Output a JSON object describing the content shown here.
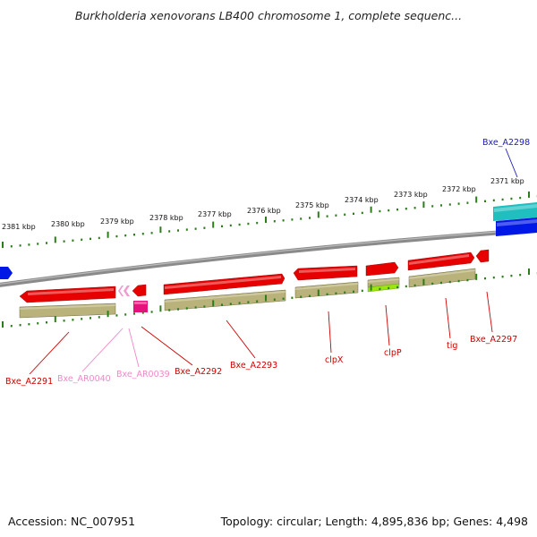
{
  "title": "Burkholderia xenovorans LB400 chromosome 1, complete sequenc...",
  "footer": {
    "accession_label": "Accession:",
    "accession": "NC_007951",
    "topology_label": "Topology:",
    "topology": "circular",
    "length_label": "Length:",
    "length": "4,895,836 bp",
    "genes_label": "Genes:",
    "genes": "4,498"
  },
  "colors": {
    "cds_red": "#e60000",
    "rna_pink": "#f09bd0",
    "feature_magenta": "#e3127d",
    "gene_khaki": "#b9b27a",
    "gene_green": "#9be610",
    "right_cyan": "#1fbfbf",
    "right_blue": "#0018e6",
    "backbone": "#8a8a8a",
    "ruler_green": "#2e7d1c",
    "label_red": "#cc0000",
    "label_pink": "#ee88c8",
    "label_blue": "#1a1ab8"
  },
  "ruler_labels": [
    "2381 kbp",
    "2380 kbp",
    "2379 kbp",
    "2378 kbp",
    "2377 kbp",
    "2376 kbp",
    "2375 kbp",
    "2374 kbp",
    "2373 kbp",
    "2372 kbp",
    "2371 kbp"
  ],
  "gene_labels": [
    {
      "text": "Bxe_A2298",
      "color": "label_blue"
    },
    {
      "text": "Bxe_A2291",
      "color": "label_red"
    },
    {
      "text": "Bxe_AR0040",
      "color": "label_pink"
    },
    {
      "text": "Bxe_AR0039",
      "color": "label_pink"
    },
    {
      "text": "Bxe_A2292",
      "color": "label_red"
    },
    {
      "text": "Bxe_A2293",
      "color": "label_red"
    },
    {
      "text": "clpX",
      "color": "label_red"
    },
    {
      "text": "clpP",
      "color": "label_red"
    },
    {
      "text": "tig",
      "color": "label_red"
    },
    {
      "text": "Bxe_A2297",
      "color": "label_red"
    }
  ]
}
